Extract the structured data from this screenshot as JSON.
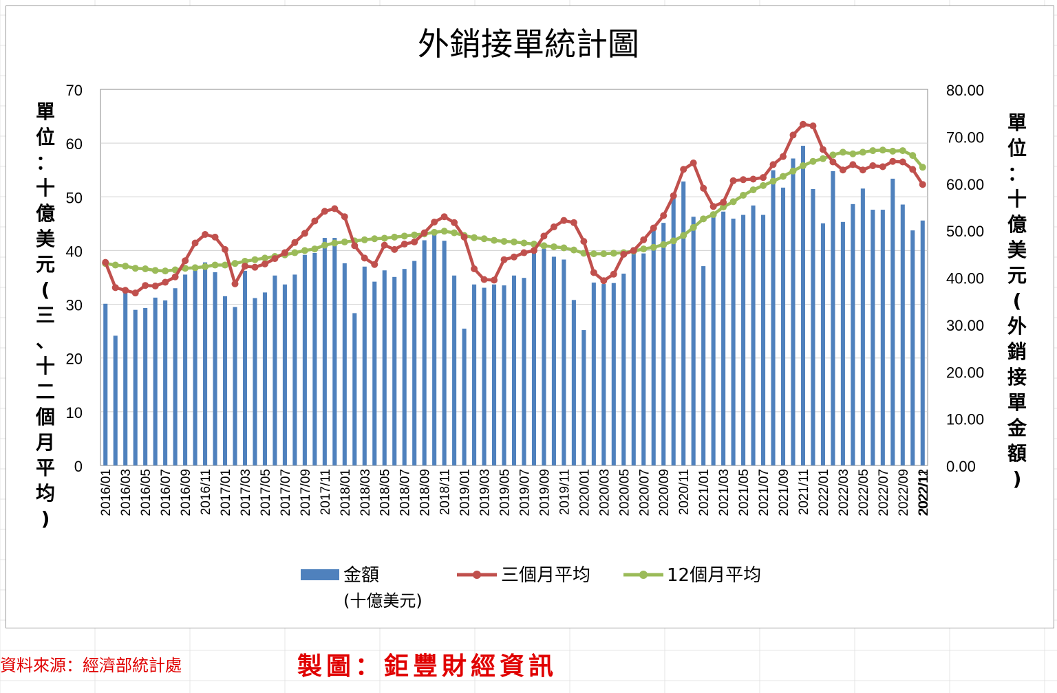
{
  "chart_data": {
    "type": "bar+line",
    "title": "外銷接單統計圖",
    "ylabel_left": "單位：十億美元(三、十二個月平均)",
    "ylabel_right": "單位：十億美元(外銷接單金額)",
    "ylim_left": [
      0,
      70
    ],
    "ylim_right": [
      0,
      80
    ],
    "yticks_left": [
      "0",
      "10",
      "20",
      "30",
      "40",
      "50",
      "60",
      "70"
    ],
    "yticks_right": [
      "0.00",
      "10.00",
      "20.00",
      "30.00",
      "40.00",
      "50.00",
      "60.00",
      "70.00",
      "80.00"
    ],
    "x_start": "2016/01",
    "x_end": "2022/12",
    "xlabel_step": 2,
    "legend_position": "bottom",
    "grid": true,
    "series": [
      {
        "name": "金額\n(十億美元)",
        "axis": "right",
        "type": "bar",
        "color": "#4f81bd",
        "values": [
          34.4,
          27.6,
          37.0,
          33.1,
          33.5,
          35.7,
          35.1,
          37.7,
          40.6,
          41.8,
          43.2,
          41.1,
          36.0,
          33.7,
          41.4,
          35.6,
          36.8,
          40.4,
          38.5,
          40.6,
          44.8,
          45.2,
          48.4,
          48.4,
          43.0,
          32.4,
          42.3,
          39.1,
          41.5,
          40.1,
          41.8,
          43.5,
          47.9,
          49.4,
          47.8,
          40.4,
          29.1,
          38.5,
          37.8,
          38.5,
          38.3,
          40.4,
          39.9,
          46.3,
          46.1,
          44.4,
          43.8,
          35.2,
          28.8,
          38.9,
          38.6,
          38.8,
          40.8,
          46.4,
          45.1,
          50.2,
          51.6,
          57.7,
          60.4,
          52.9,
          42.4,
          53.6,
          54.0,
          52.5,
          53.3,
          55.3,
          53.3,
          62.8,
          59.1,
          65.3,
          68.0,
          58.8,
          51.5,
          62.6,
          51.8,
          55.6,
          58.9,
          54.4,
          54.4,
          61.0,
          55.5,
          50.0,
          52.1
        ]
      },
      {
        "name": "三個月平均",
        "axis": "left",
        "type": "line",
        "color": "#c0504d",
        "values": [
          37.8,
          33.1,
          32.6,
          32.1,
          33.5,
          33.4,
          34.1,
          35.1,
          38.1,
          41.4,
          43.0,
          42.5,
          40.2,
          33.8,
          37.1,
          36.9,
          37.5,
          38.5,
          39.6,
          41.5,
          43.2,
          45.5,
          47.3,
          47.8,
          46.3,
          40.9,
          38.6,
          37.4,
          41.0,
          40.2,
          41.2,
          41.6,
          43.3,
          45.3,
          46.3,
          45.2,
          42.5,
          36.6,
          34.6,
          34.5,
          38.3,
          38.8,
          39.6,
          40.0,
          42.7,
          44.4,
          45.6,
          45.2,
          41.7,
          35.9,
          34.4,
          35.6,
          39.3,
          40.0,
          42.0,
          44.2,
          46.5,
          50.2,
          55.1,
          56.3,
          51.6,
          48.2,
          49.0,
          53.0,
          53.2,
          53.3,
          53.6,
          56.0,
          57.5,
          61.5,
          63.5,
          63.2,
          58.8,
          56.5,
          55.0,
          56.0,
          55.0,
          55.8,
          55.6,
          56.6,
          56.5,
          55.1,
          52.3
        ]
      },
      {
        "name": "12個月平均",
        "axis": "left",
        "type": "line",
        "color": "#9bbb59",
        "values": [
          37.6,
          37.3,
          37.1,
          36.7,
          36.6,
          36.3,
          36.2,
          36.4,
          36.7,
          36.8,
          37.0,
          37.3,
          37.3,
          37.6,
          38.0,
          38.3,
          38.6,
          38.9,
          39.2,
          39.6,
          40.0,
          40.3,
          41.0,
          41.4,
          41.6,
          41.8,
          42.0,
          42.2,
          42.3,
          42.5,
          42.7,
          42.9,
          43.1,
          43.4,
          43.6,
          43.3,
          42.8,
          42.4,
          42.2,
          41.9,
          41.7,
          41.6,
          41.4,
          41.2,
          40.9,
          40.7,
          40.5,
          40.1,
          39.5,
          39.4,
          39.4,
          39.5,
          39.6,
          39.9,
          40.3,
          40.6,
          41.1,
          41.8,
          42.8,
          44.3,
          45.9,
          46.7,
          48.1,
          49.1,
          50.3,
          51.3,
          52.1,
          52.9,
          53.8,
          54.8,
          55.8,
          56.6,
          57.1,
          57.8,
          58.3,
          58.0,
          58.3,
          58.6,
          58.7,
          58.5,
          58.6,
          57.7,
          55.5
        ]
      }
    ]
  },
  "footer": {
    "source": "資料來源：經濟部統計處",
    "maker": "製圖：鉅豐財經資訊"
  }
}
